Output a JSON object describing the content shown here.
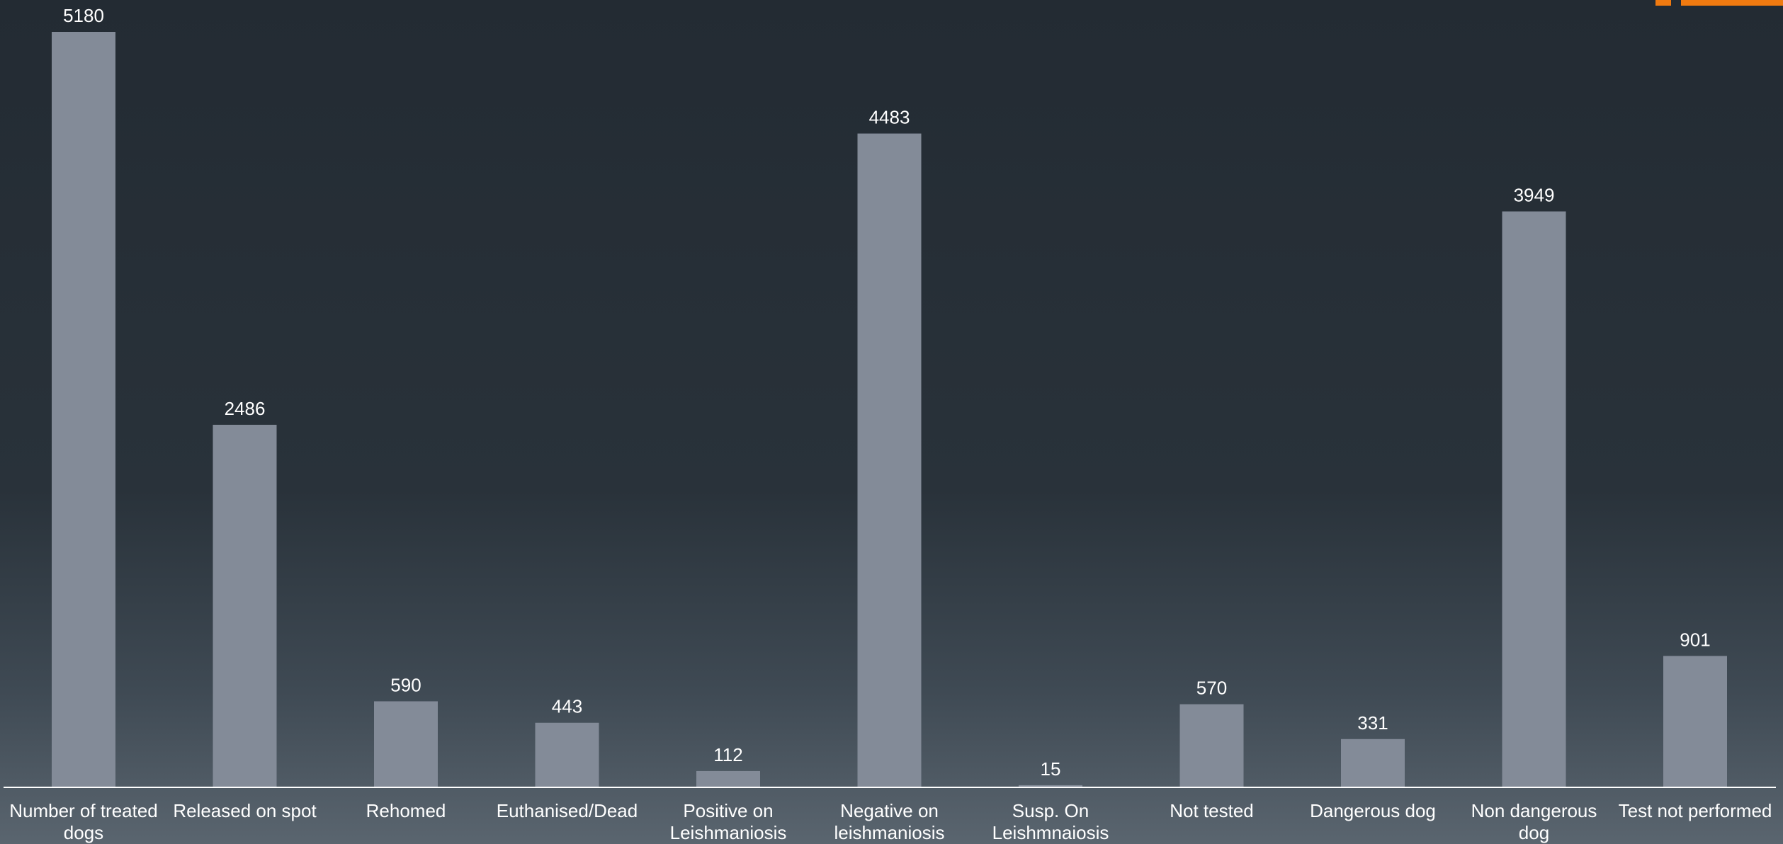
{
  "accent_color": "#f07a10",
  "bar_color": "#838b98",
  "chart_data": {
    "type": "bar",
    "categories": [
      "Number of treated dogs",
      "Released on spot",
      "Rehomed",
      "Euthanised/Dead",
      "Positive on Leishmaniosis",
      "Negative on leishmaniosis",
      "Susp. On Leishmnaiosis",
      "Not tested",
      "Dangerous dog",
      "Non dangerous dog",
      "Test not performed"
    ],
    "category_lines": [
      [
        "Number of treated",
        "dogs"
      ],
      [
        "Released on spot"
      ],
      [
        "Rehomed"
      ],
      [
        "Euthanised/Dead"
      ],
      [
        "Positive on",
        "Leishmaniosis"
      ],
      [
        "Negative on",
        "leishmaniosis"
      ],
      [
        "Susp. On",
        "Leishmnaiosis"
      ],
      [
        "Not tested"
      ],
      [
        "Dangerous dog"
      ],
      [
        "Non dangerous",
        "dog"
      ],
      [
        "Test not performed"
      ]
    ],
    "values": [
      5180,
      2486,
      590,
      443,
      112,
      4483,
      15,
      570,
      331,
      3949,
      901
    ],
    "ylim": [
      0,
      5180
    ],
    "grid": false,
    "legend": "none"
  }
}
